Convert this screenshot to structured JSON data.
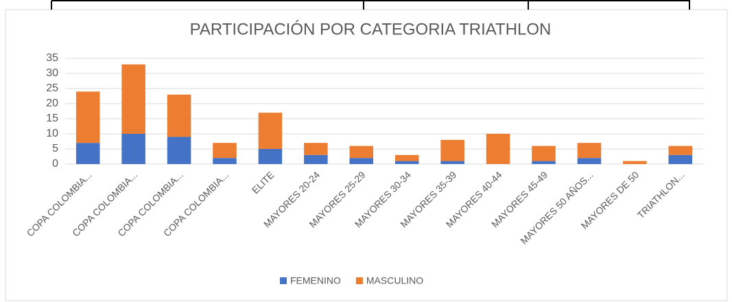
{
  "chart_data": {
    "type": "stacked_bar",
    "title": "PARTICIPACIÓN POR CATEGORIA TRIATHLON",
    "categories": [
      "COPA COLOMBIA...",
      "COPA COLOMBIA...",
      "COPA COLOMBIA...",
      "COPA COLOMBIA...",
      "ELITE",
      "MAYORES 20-24",
      "MAYORES 25-29",
      "MAYORES 30-34",
      "MAYORES 35-39",
      "MAYORES 40-44",
      "MAYORES 45-49",
      "MAYORES 50 AÑOS...",
      "MAYORES DE 50",
      "TRIATHLON..."
    ],
    "series": [
      {
        "name": "FEMENINO",
        "color": "#4472c4",
        "values": [
          7,
          10,
          9,
          2,
          5,
          3,
          2,
          1,
          1,
          0,
          1,
          2,
          0,
          3
        ]
      },
      {
        "name": "MASCULINO",
        "color": "#ed7d31",
        "values": [
          17,
          23,
          14,
          5,
          12,
          4,
          4,
          2,
          7,
          10,
          5,
          5,
          1,
          3
        ]
      }
    ],
    "ylim": [
      0,
      35
    ],
    "yticks": [
      0,
      5,
      10,
      15,
      20,
      25,
      30,
      35
    ],
    "grid": true,
    "legend": "bottom"
  }
}
